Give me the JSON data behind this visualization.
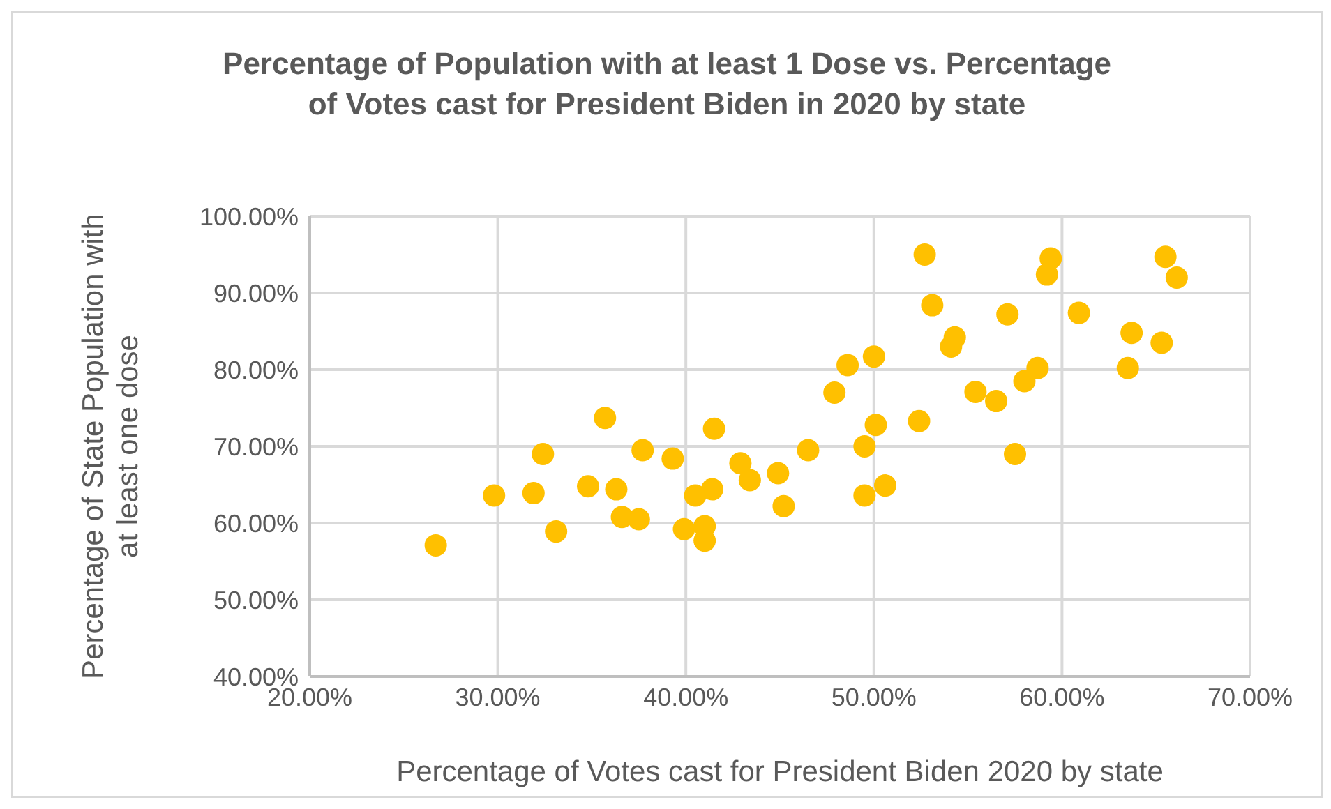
{
  "chart_data": {
    "type": "scatter",
    "title": "Percentage of Population with at least 1 Dose vs. Percentage of Votes cast for President Biden in 2020 by state",
    "xlabel": "Percentage of Votes cast for President Biden 2020 by state",
    "ylabel": "Percentage of State Population with at least one dose",
    "x": [
      26.7,
      29.8,
      31.9,
      32.4,
      33.1,
      34.8,
      35.7,
      36.3,
      36.6,
      37.5,
      37.7,
      39.3,
      39.9,
      40.5,
      41.0,
      41.0,
      41.4,
      41.5,
      42.9,
      43.4,
      44.9,
      45.2,
      46.5,
      47.9,
      48.6,
      50.0,
      49.5,
      49.5,
      50.1,
      50.6,
      52.4,
      52.7,
      53.1,
      54.1,
      54.3,
      55.4,
      56.5,
      57.1,
      57.5,
      58.0,
      58.7,
      59.2,
      59.4,
      60.9,
      63.5,
      63.7,
      65.3,
      65.5,
      66.1
    ],
    "values": [
      57.1,
      63.6,
      63.9,
      69.0,
      58.9,
      64.8,
      73.7,
      64.4,
      60.8,
      60.5,
      69.5,
      68.4,
      59.2,
      63.6,
      59.6,
      57.7,
      64.4,
      72.3,
      67.8,
      65.6,
      66.5,
      62.2,
      69.5,
      77.0,
      80.6,
      81.7,
      70.0,
      63.6,
      72.8,
      64.9,
      73.3,
      95.0,
      88.4,
      83.0,
      84.2,
      77.1,
      75.9,
      87.2,
      69.0,
      78.5,
      80.2,
      92.4,
      94.5,
      87.4,
      80.2,
      84.8,
      83.5,
      94.7,
      92.0
    ],
    "color": "#ffc000",
    "marker": "circle",
    "grid": true,
    "xlim": [
      20,
      70
    ],
    "xticks": [
      {
        "value": 20,
        "label": "20.00%"
      },
      {
        "value": 30,
        "label": "30.00%"
      },
      {
        "value": 40,
        "label": "40.00%"
      },
      {
        "value": 50,
        "label": "50.00%"
      },
      {
        "value": 60,
        "label": "60.00%"
      },
      {
        "value": 70,
        "label": "70.00%"
      }
    ],
    "ylim": [
      40,
      100
    ],
    "yticks": [
      {
        "value": 40,
        "label": "40.00%"
      },
      {
        "value": 50,
        "label": "50.00%"
      },
      {
        "value": 60,
        "label": "60.00%"
      },
      {
        "value": 70,
        "label": "70.00%"
      },
      {
        "value": 80,
        "label": "80.00%"
      },
      {
        "value": 90,
        "label": "90.00%"
      },
      {
        "value": 100,
        "label": "100.00%"
      }
    ]
  }
}
